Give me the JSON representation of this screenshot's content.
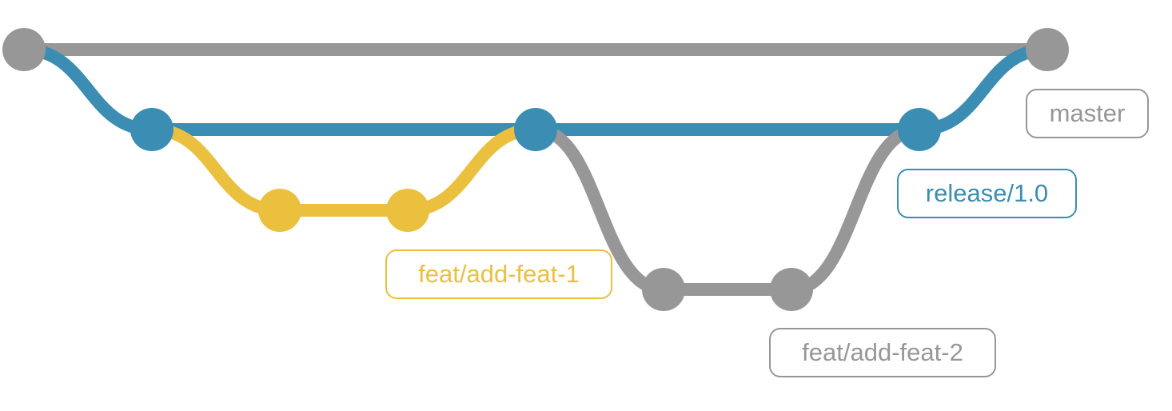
{
  "colors": {
    "master": "#979797",
    "release": "#3b8db3",
    "feature_1": "#ebc03f",
    "feature_2": "#979797"
  },
  "branches": [
    {
      "key": "master",
      "label": "master",
      "color": "#979797"
    },
    {
      "key": "release",
      "label": "release/1.0",
      "color": "#3b8db3"
    },
    {
      "key": "feat1",
      "label": "feat/add-feat-1",
      "color": "#ebc03f"
    },
    {
      "key": "feat2",
      "label": "feat/add-feat-2",
      "color": "#979797"
    }
  ]
}
